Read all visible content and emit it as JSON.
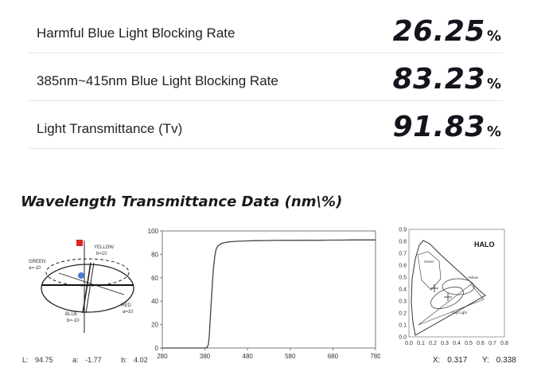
{
  "metrics": [
    {
      "label": "Harmful Blue Light Blocking Rate",
      "value": "26.25",
      "unit": "%"
    },
    {
      "label": "385nm~415nm Blue Light Blocking Rate",
      "value": "83.23",
      "unit": "%"
    },
    {
      "label": "Light Transmittance (Tv)",
      "value": "91.83",
      "unit": "%"
    }
  ],
  "section_title": "Wavelength Transmittance Data (nm\\%)",
  "color_space": {
    "labels": {
      "yellow": "YELLOW",
      "yellow_value": "b=10",
      "green": "GREEN",
      "green_value": "a=-10",
      "red": "RED",
      "red_value": "a=10",
      "blue": "BLUE",
      "blue_value": "b=-10"
    },
    "readout": {
      "l_label": "L:",
      "l_value": "94.75",
      "a_label": "a:",
      "a_value": "-1.77",
      "b_label": "b:",
      "b_value": "4.02"
    }
  },
  "chart_data": {
    "type": "line",
    "title": "",
    "xlabel": "",
    "ylabel": "",
    "x_ticks": [
      280,
      380,
      480,
      580,
      680,
      780
    ],
    "y_ticks": [
      0,
      20,
      40,
      60,
      80,
      100
    ],
    "xlim": [
      280,
      780
    ],
    "ylim": [
      0,
      100
    ],
    "grid": false,
    "series": [
      {
        "x": [
          280,
          380,
          385,
          388,
          390,
          392,
          395,
          398,
          400,
          403,
          406,
          410,
          415,
          420,
          430,
          440,
          460,
          480,
          500,
          520,
          540,
          560,
          580,
          600,
          620,
          640,
          660,
          680,
          700,
          720,
          740,
          760,
          780
        ],
        "values": [
          0,
          0,
          0.5,
          3,
          10,
          22,
          40,
          58,
          68,
          78,
          84,
          87,
          88.5,
          89.5,
          90.3,
          90.8,
          91.2,
          91.5,
          91.7,
          91.8,
          91.9,
          92,
          92,
          92,
          92.1,
          92,
          92.1,
          92.2,
          92.2,
          92.3,
          92.3,
          92.3,
          92.3
        ],
        "color": "#444444"
      }
    ]
  },
  "cie_chart": {
    "brand": "HALO",
    "x_ticks": [
      "0.0",
      "0.1",
      "0.2",
      "0.3",
      "0.4",
      "0.5",
      "0.6",
      "0.7",
      "0.8"
    ],
    "y_ticks": [
      "0.0",
      "0.1",
      "0.2",
      "0.3",
      "0.4",
      "0.5",
      "0.6",
      "0.7",
      "0.8",
      "0.9"
    ],
    "region_labels": {
      "green": "Green",
      "yellow": "Yellow",
      "day_light": "Day Light"
    },
    "readout": {
      "x_label": "X:",
      "x_value": "0.317",
      "y_label": "Y:",
      "y_value": "0.338"
    }
  }
}
